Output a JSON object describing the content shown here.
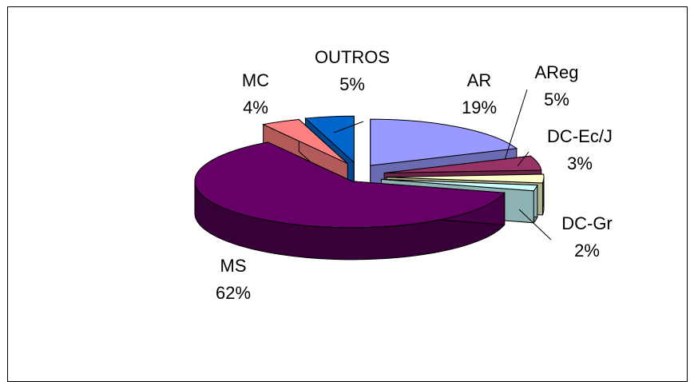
{
  "chart_data": {
    "type": "pie",
    "title": "",
    "style": "3d-exploded",
    "legend": "none",
    "slices": [
      {
        "label": "AR",
        "percent_label": "19%",
        "value": 19,
        "color": "#9999ff"
      },
      {
        "label": "AReg",
        "percent_label": "5%",
        "value": 5,
        "color": "#993366"
      },
      {
        "label": "DC-Ec/J",
        "percent_label": "3%",
        "value": 3,
        "color": "#ffffcc"
      },
      {
        "label": "DC-Gr",
        "percent_label": "2%",
        "value": 2,
        "color": "#ccffff"
      },
      {
        "label": "MS",
        "percent_label": "62%",
        "value": 62,
        "color": "#660066"
      },
      {
        "label": "MC",
        "percent_label": "4%",
        "value": 4,
        "color": "#ff8080"
      },
      {
        "label": "OUTROS",
        "percent_label": "5%",
        "value": 5,
        "color": "#0066cc"
      }
    ]
  }
}
